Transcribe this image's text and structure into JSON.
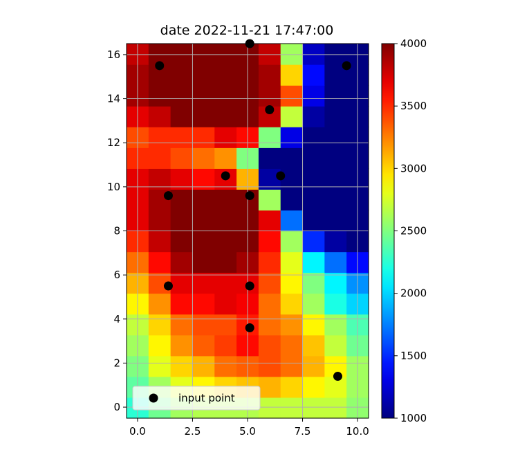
{
  "chart_data": {
    "type": "heatmap",
    "title": "date 2022-11-21 17:47:00",
    "xlabel": "",
    "ylabel": "",
    "xlim": [
      -0.5,
      10.5
    ],
    "ylim": [
      -0.5,
      16.5
    ],
    "x_ticks": [
      0.0,
      2.5,
      5.0,
      7.5,
      10.0
    ],
    "x_tick_labels": [
      "0.0",
      "2.5",
      "5.0",
      "7.5",
      "10.0"
    ],
    "y_ticks": [
      0,
      2,
      4,
      6,
      8,
      10,
      12,
      14,
      16
    ],
    "y_tick_labels": [
      "0",
      "2",
      "4",
      "6",
      "8",
      "10",
      "12",
      "14",
      "16"
    ],
    "grid": true,
    "colormap": "jet",
    "colorbar": {
      "range": [
        1000,
        4000
      ],
      "ticks": [
        1000,
        1500,
        2000,
        2500,
        3000,
        3500,
        4000
      ],
      "tick_labels": [
        "1000",
        "1500",
        "2000",
        "2500",
        "3000",
        "3500",
        "4000"
      ]
    },
    "grid_values": [
      [
        2250,
        2450,
        2600,
        2650,
        2650,
        2650,
        2700,
        2700,
        2700,
        2700,
        2550
      ],
      [
        2400,
        2600,
        2800,
        2900,
        3000,
        3050,
        3100,
        3000,
        2900,
        2800,
        2600
      ],
      [
        2500,
        2800,
        3000,
        3100,
        3300,
        3350,
        3400,
        3300,
        3100,
        2900,
        2600
      ],
      [
        2600,
        2900,
        3200,
        3350,
        3450,
        3600,
        3400,
        3300,
        3050,
        2700,
        2450
      ],
      [
        2700,
        3000,
        3300,
        3400,
        3400,
        3550,
        3300,
        3200,
        2900,
        2600,
        2350
      ],
      [
        2900,
        3200,
        3600,
        3600,
        3700,
        3650,
        3300,
        3000,
        2600,
        2200,
        2000
      ],
      [
        3100,
        3400,
        3700,
        3700,
        3700,
        3700,
        3400,
        2900,
        2500,
        2100,
        1800
      ],
      [
        3300,
        3600,
        3900,
        4000,
        4000,
        3900,
        3500,
        2800,
        2100,
        1700,
        1400
      ],
      [
        3500,
        3800,
        4000,
        4000,
        4000,
        4000,
        3600,
        2600,
        1500,
        1100,
        1000
      ],
      [
        3700,
        3900,
        4000,
        4000,
        4000,
        4000,
        3700,
        1700,
        1000,
        1000,
        1000
      ],
      [
        3700,
        3900,
        4000,
        4000,
        4000,
        4000,
        2600,
        1000,
        1000,
        1000,
        1000
      ],
      [
        3700,
        3800,
        3700,
        3600,
        3700,
        3100,
        1100,
        1000,
        1000,
        1000,
        1000
      ],
      [
        3500,
        3500,
        3400,
        3300,
        3200,
        2500,
        1000,
        1000,
        1000,
        1000,
        1000
      ],
      [
        3400,
        3500,
        3500,
        3500,
        3700,
        3600,
        2500,
        1300,
        1000,
        1000,
        1000
      ],
      [
        3700,
        3800,
        4000,
        4000,
        4000,
        4000,
        3800,
        2700,
        1100,
        1000,
        1000
      ],
      [
        3900,
        4000,
        4000,
        4000,
        4000,
        4000,
        3900,
        3400,
        1300,
        1000,
        1000
      ],
      [
        3900,
        4000,
        4000,
        4000,
        4000,
        4000,
        3900,
        3000,
        1400,
        1000,
        1000
      ],
      [
        3800,
        4000,
        4000,
        4000,
        4000,
        4000,
        3800,
        2600,
        1200,
        1000,
        1000
      ]
    ],
    "series": [
      {
        "name": "input point",
        "type": "scatter",
        "color": "#000000",
        "x": [
          1.0,
          9.5,
          5.1,
          6.0,
          4.0,
          6.5,
          1.4,
          5.1,
          1.4,
          5.1,
          5.1,
          9.1
        ],
        "y": [
          15.5,
          15.5,
          16.5,
          13.5,
          10.5,
          10.5,
          9.6,
          9.6,
          5.5,
          5.5,
          3.6,
          1.4
        ]
      }
    ],
    "legend": {
      "placement": "lower-left",
      "label": "input point"
    }
  }
}
